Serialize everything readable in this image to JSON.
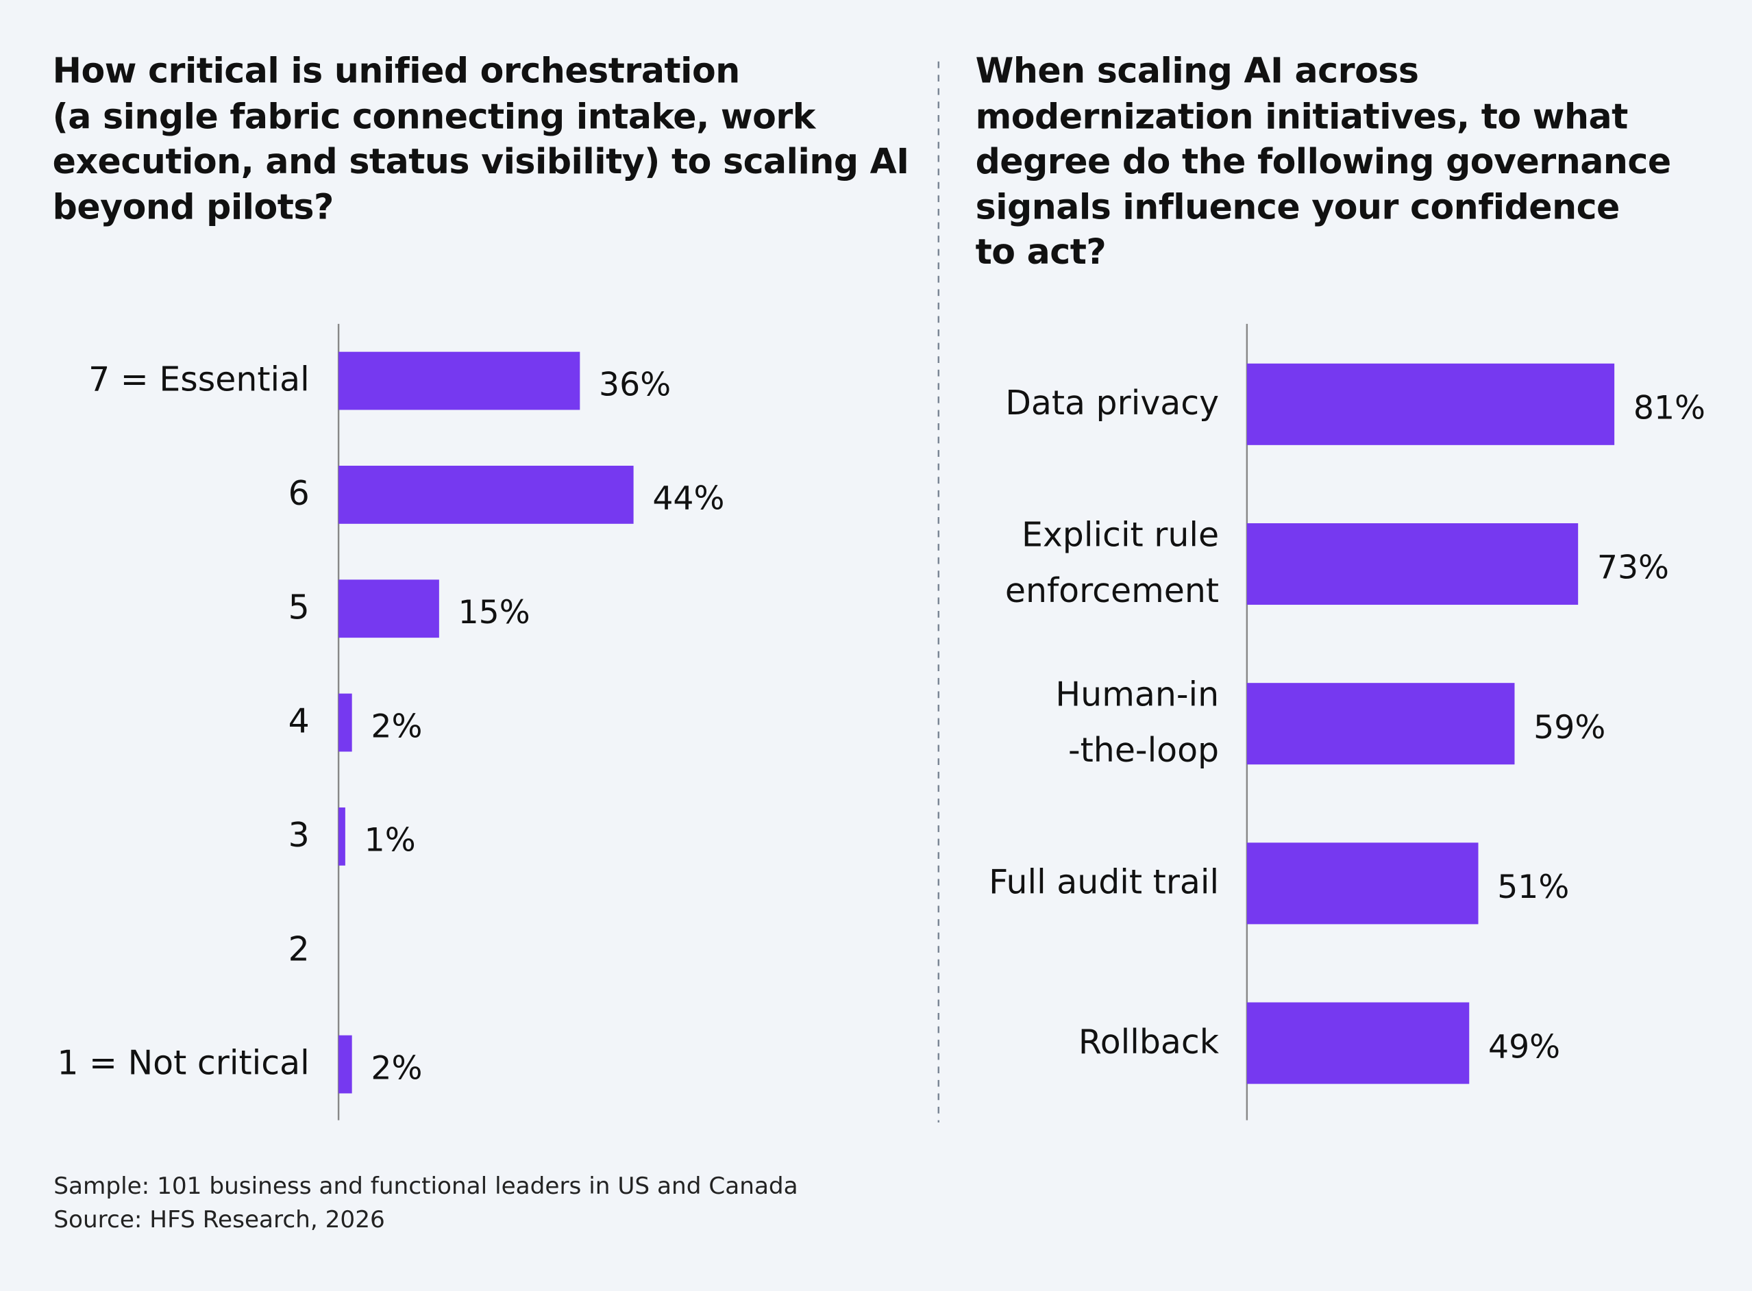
{
  "chart_data": [
    {
      "type": "bar",
      "orientation": "horizontal",
      "title": "How critical is unified orchestration\n(a single fabric connecting intake, work\nexecution, and status visibility) to scaling AI\nbeyond pilots?",
      "categories": [
        "7 = Essential",
        "6",
        "5",
        "4",
        "3",
        "2",
        "1 = Not critical"
      ],
      "values": [
        36,
        44,
        15,
        2,
        1,
        0,
        2
      ],
      "value_labels": [
        "36%",
        "44%",
        "15%",
        "2%",
        "1%",
        null,
        "2%"
      ],
      "color": "#7639f0"
    },
    {
      "type": "bar",
      "orientation": "horizontal",
      "title": "When scaling AI across\nmodernization initiatives, to what\ndegree do the following governance\nsignals influence your confidence\nto act?",
      "categories": [
        "Data privacy",
        "Explicit rule\nenforcement",
        "Human-in\n-the-loop",
        "Full audit trail",
        "Rollback"
      ],
      "values": [
        81,
        73,
        59,
        51,
        49
      ],
      "value_labels": [
        "81%",
        "73%",
        "59%",
        "51%",
        "49%"
      ],
      "color": "#7639f0"
    }
  ],
  "footer": {
    "sample": "Sample: 101 business and functional leaders in US and Canada",
    "source": "Source: HFS Research, 2026"
  }
}
